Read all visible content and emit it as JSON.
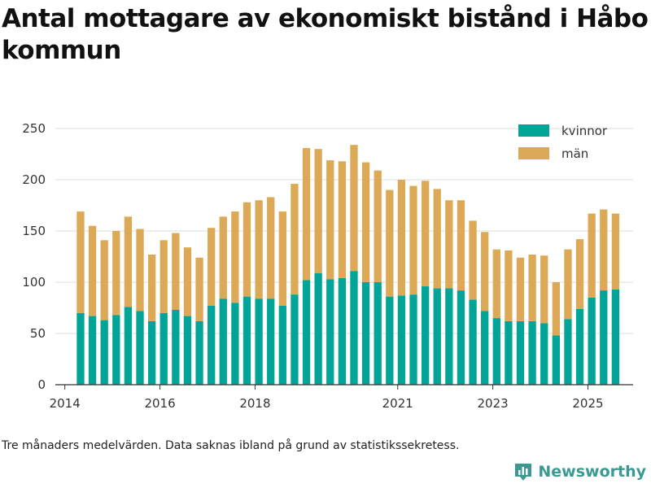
{
  "title": "Antal mottagare av ekonomiskt bistånd i Håbo kommun",
  "note": "Tre månaders medelvärden. Data saknas ibland på grund av statistikssekretess.",
  "brand": {
    "name": "Newsworthy"
  },
  "colors": {
    "women": "#00a597",
    "men": "#dcaa56",
    "grid": "#dcdcdc",
    "axis": "#333333"
  },
  "chart_data": {
    "type": "bar",
    "stacked": true,
    "title": "Antal mottagare av ekonomiskt bistånd i Håbo kommun",
    "xlabel": "",
    "ylabel": "",
    "ylim": [
      0,
      250
    ],
    "yticks": [
      0,
      50,
      100,
      150,
      200,
      250
    ],
    "xlim": [
      2013.8,
      2025.95
    ],
    "xticks": [
      {
        "value": 2014,
        "label": "2014"
      },
      {
        "value": 2016,
        "label": "2016"
      },
      {
        "value": 2018,
        "label": "2018"
      },
      {
        "value": 2021,
        "label": "2021"
      },
      {
        "value": 2023,
        "label": "2023"
      },
      {
        "value": 2025,
        "label": "2025"
      }
    ],
    "x_start": 2014.33,
    "x_step": 0.25,
    "legend_position": "top-right",
    "series": [
      {
        "name": "kvinnor",
        "color": "#00a597",
        "values": [
          70,
          67,
          63,
          68,
          76,
          72,
          62,
          70,
          73,
          67,
          62,
          77,
          84,
          80,
          86,
          84,
          84,
          77,
          88,
          102,
          109,
          103,
          104,
          111,
          100,
          100,
          86,
          87,
          88,
          96,
          94,
          94,
          92,
          83,
          72,
          65,
          62,
          62,
          62,
          60,
          48,
          64,
          74,
          85,
          92,
          93
        ]
      },
      {
        "name": "män",
        "color": "#dcaa56",
        "values": [
          99,
          88,
          78,
          82,
          88,
          80,
          65,
          71,
          75,
          67,
          62,
          76,
          80,
          89,
          92,
          96,
          99,
          92,
          108,
          129,
          121,
          116,
          114,
          123,
          117,
          109,
          104,
          113,
          106,
          103,
          97,
          86,
          88,
          77,
          77,
          67,
          69,
          62,
          65,
          66,
          52,
          68,
          68,
          82,
          79,
          74
        ]
      }
    ]
  }
}
